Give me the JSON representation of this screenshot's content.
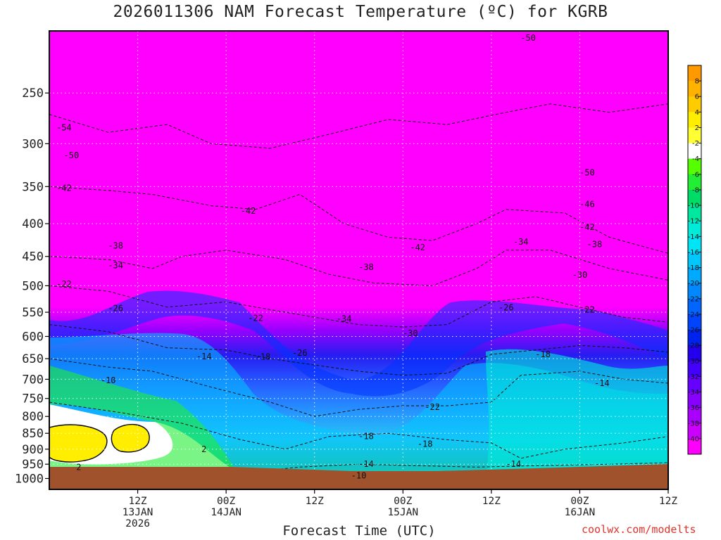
{
  "title": "2026011306 NAM Forecast Temperature (ºC) for KGRB",
  "credit": "coolwx.com/modelts",
  "chart_data": {
    "type": "heatmap",
    "title": "2026011306 NAM Forecast Temperature (ºC) for KGRB",
    "xlabel": "Forecast Time (UTC)",
    "ylabel": "",
    "y_scale": "log-pressure",
    "y_ticks": [
      "250",
      "300",
      "350",
      "400",
      "450",
      "500",
      "550",
      "600",
      "650",
      "700",
      "750",
      "800",
      "850",
      "900",
      "950",
      "1000"
    ],
    "y_tick_values": [
      250,
      300,
      350,
      400,
      450,
      500,
      550,
      600,
      650,
      700,
      750,
      800,
      850,
      900,
      950,
      1000
    ],
    "ylim": [
      200,
      1040
    ],
    "xlim": [
      -6,
      78
    ],
    "x_ticks": [
      {
        "hours": 6,
        "lines": [
          "12Z",
          "13JAN",
          "2026"
        ]
      },
      {
        "hours": 18,
        "lines": [
          "00Z",
          "14JAN"
        ]
      },
      {
        "hours": 30,
        "lines": [
          "12Z"
        ]
      },
      {
        "hours": 42,
        "lines": [
          "00Z",
          "15JAN"
        ]
      },
      {
        "hours": 54,
        "lines": [
          "12Z"
        ]
      },
      {
        "hours": 66,
        "lines": [
          "00Z",
          "16JAN"
        ]
      },
      {
        "hours": 78,
        "lines": [
          "12Z"
        ]
      }
    ],
    "grid": true,
    "colorbar": {
      "labels": [
        "8",
        "6",
        "4",
        "2",
        "-2",
        "-4",
        "-6",
        "-8",
        "-10",
        "-12",
        "-14",
        "-16",
        "-18",
        "-20",
        "-22",
        "-24",
        "-26",
        "-28",
        "-30",
        "-32",
        "-34",
        "-36",
        "-38",
        "-40"
      ],
      "colors": [
        "#ff9900",
        "#ffb300",
        "#ffcc00",
        "#ffee00",
        "#ffff33",
        "#ffffff",
        "#55ff00",
        "#22ee33",
        "#00dd66",
        "#00e8a0",
        "#00ecd8",
        "#00e5f5",
        "#00c8ff",
        "#00aaff",
        "#0088ff",
        "#0066ff",
        "#0044ff",
        "#0022ee",
        "#2200ee",
        "#4400ff",
        "#6600ff",
        "#8800ff",
        "#aa00ff",
        "#cc00ff",
        "#ff00ff"
      ]
    },
    "series": [
      {
        "values": [
          [
            {
              "x": -6,
              "y": 270
            },
            {
              "x": 2,
              "y": 288
            },
            {
              "x": 10,
              "y": 280
            },
            {
              "x": 16,
              "y": 300
            },
            {
              "x": 24,
              "y": 305
            },
            {
              "x": 32,
              "y": 290
            },
            {
              "x": 40,
              "y": 275
            },
            {
              "x": 48,
              "y": 280
            },
            {
              "x": 56,
              "y": 268
            },
            {
              "x": 62,
              "y": 260
            },
            {
              "x": 70,
              "y": 268
            },
            {
              "x": 78,
              "y": 260
            }
          ],
          [
            {
              "x": -6,
              "y": 350
            },
            {
              "x": 2,
              "y": 355
            },
            {
              "x": 8,
              "y": 360
            },
            {
              "x": 16,
              "y": 375
            },
            {
              "x": 22,
              "y": 380
            },
            {
              "x": 28,
              "y": 360
            },
            {
              "x": 34,
              "y": 400
            },
            {
              "x": 40,
              "y": 420
            },
            {
              "x": 46,
              "y": 425
            },
            {
              "x": 52,
              "y": 400
            },
            {
              "x": 56,
              "y": 380
            },
            {
              "x": 64,
              "y": 385
            },
            {
              "x": 70,
              "y": 420
            },
            {
              "x": 78,
              "y": 445
            }
          ],
          [
            {
              "x": -6,
              "y": 450
            },
            {
              "x": 2,
              "y": 455
            },
            {
              "x": 8,
              "y": 470
            },
            {
              "x": 12,
              "y": 450
            },
            {
              "x": 18,
              "y": 440
            },
            {
              "x": 26,
              "y": 455
            },
            {
              "x": 32,
              "y": 480
            },
            {
              "x": 38,
              "y": 495
            },
            {
              "x": 46,
              "y": 500
            },
            {
              "x": 52,
              "y": 470
            },
            {
              "x": 56,
              "y": 440
            },
            {
              "x": 62,
              "y": 440
            },
            {
              "x": 70,
              "y": 470
            },
            {
              "x": 78,
              "y": 490
            }
          ],
          [
            {
              "x": -6,
              "y": 500
            },
            {
              "x": 2,
              "y": 510
            },
            {
              "x": 10,
              "y": 540
            },
            {
              "x": 18,
              "y": 530
            },
            {
              "x": 24,
              "y": 545
            },
            {
              "x": 30,
              "y": 560
            },
            {
              "x": 36,
              "y": 575
            },
            {
              "x": 42,
              "y": 580
            },
            {
              "x": 48,
              "y": 575
            },
            {
              "x": 54,
              "y": 530
            },
            {
              "x": 60,
              "y": 520
            },
            {
              "x": 66,
              "y": 540
            },
            {
              "x": 72,
              "y": 560
            },
            {
              "x": 78,
              "y": 570
            }
          ],
          [
            {
              "x": -6,
              "y": 575
            },
            {
              "x": 2,
              "y": 590
            },
            {
              "x": 10,
              "y": 625
            },
            {
              "x": 18,
              "y": 630
            },
            {
              "x": 24,
              "y": 650
            },
            {
              "x": 30,
              "y": 665
            },
            {
              "x": 36,
              "y": 680
            },
            {
              "x": 42,
              "y": 690
            },
            {
              "x": 48,
              "y": 685
            },
            {
              "x": 54,
              "y": 640
            },
            {
              "x": 60,
              "y": 630
            },
            {
              "x": 66,
              "y": 620
            },
            {
              "x": 72,
              "y": 625
            },
            {
              "x": 78,
              "y": 635
            }
          ],
          [
            {
              "x": -6,
              "y": 650
            },
            {
              "x": 2,
              "y": 670
            },
            {
              "x": 8,
              "y": 680
            },
            {
              "x": 16,
              "y": 720
            },
            {
              "x": 24,
              "y": 760
            },
            {
              "x": 30,
              "y": 800
            },
            {
              "x": 36,
              "y": 780
            },
            {
              "x": 42,
              "y": 770
            },
            {
              "x": 48,
              "y": 770
            },
            {
              "x": 54,
              "y": 760
            },
            {
              "x": 58,
              "y": 690
            },
            {
              "x": 66,
              "y": 680
            },
            {
              "x": 72,
              "y": 700
            },
            {
              "x": 78,
              "y": 710
            }
          ],
          [
            {
              "x": -6,
              "y": 760
            },
            {
              "x": 4,
              "y": 790
            },
            {
              "x": 12,
              "y": 820
            },
            {
              "x": 20,
              "y": 870
            },
            {
              "x": 26,
              "y": 900
            },
            {
              "x": 32,
              "y": 860
            },
            {
              "x": 40,
              "y": 850
            },
            {
              "x": 48,
              "y": 870
            },
            {
              "x": 54,
              "y": 880
            },
            {
              "x": 58,
              "y": 930
            },
            {
              "x": 64,
              "y": 900
            },
            {
              "x": 72,
              "y": 880
            },
            {
              "x": 78,
              "y": 860
            }
          ],
          [
            {
              "x": 22,
              "y": 975
            },
            {
              "x": 28,
              "y": 960
            },
            {
              "x": 36,
              "y": 950
            },
            {
              "x": 44,
              "y": 955
            },
            {
              "x": 52,
              "y": 960
            },
            {
              "x": 60,
              "y": 955
            },
            {
              "x": 70,
              "y": 950
            },
            {
              "x": 78,
              "y": 945
            }
          ]
        ]
      }
    ],
    "annotations": [
      {
        "text": "-50",
        "x": 59,
        "y": 205
      },
      {
        "text": "-54",
        "x": -4,
        "y": 283
      },
      {
        "text": "-50",
        "x": -3,
        "y": 313
      },
      {
        "text": "-50",
        "x": 67,
        "y": 333
      },
      {
        "text": "-42",
        "x": -4,
        "y": 352
      },
      {
        "text": "-46",
        "x": 67,
        "y": 373
      },
      {
        "text": "-42",
        "x": 21,
        "y": 382
      },
      {
        "text": "-42",
        "x": 67,
        "y": 405
      },
      {
        "text": "-34",
        "x": 58,
        "y": 427
      },
      {
        "text": "-38",
        "x": 68,
        "y": 431
      },
      {
        "text": "-38",
        "x": 3,
        "y": 433
      },
      {
        "text": "-42",
        "x": 44,
        "y": 436
      },
      {
        "text": "-34",
        "x": 3,
        "y": 465
      },
      {
        "text": "-38",
        "x": 37,
        "y": 468
      },
      {
        "text": "-30",
        "x": 66,
        "y": 481
      },
      {
        "text": "-22",
        "x": -4,
        "y": 497
      },
      {
        "text": "-26",
        "x": 3,
        "y": 542
      },
      {
        "text": "-26",
        "x": 56,
        "y": 541
      },
      {
        "text": "-22",
        "x": 67,
        "y": 545
      },
      {
        "text": "-22",
        "x": 22,
        "y": 562
      },
      {
        "text": "-34",
        "x": 34,
        "y": 563
      },
      {
        "text": "-30",
        "x": 43,
        "y": 593
      },
      {
        "text": "-26",
        "x": 28,
        "y": 637
      },
      {
        "text": "-14",
        "x": 15,
        "y": 645
      },
      {
        "text": "-18",
        "x": 23,
        "y": 646
      },
      {
        "text": "-18",
        "x": 61,
        "y": 640
      },
      {
        "text": "-10",
        "x": 2,
        "y": 703
      },
      {
        "text": "-14",
        "x": 69,
        "y": 710
      },
      {
        "text": "-22",
        "x": 46,
        "y": 774
      },
      {
        "text": "-18",
        "x": 37,
        "y": 859
      },
      {
        "text": "-18",
        "x": 45,
        "y": 883
      },
      {
        "text": "2",
        "x": 15,
        "y": 900
      },
      {
        "text": "-14",
        "x": 37,
        "y": 950
      },
      {
        "text": "-14",
        "x": 57,
        "y": 950
      },
      {
        "text": "2",
        "x": -2,
        "y": 960
      },
      {
        "text": "-10",
        "x": 36,
        "y": 990
      }
    ]
  }
}
